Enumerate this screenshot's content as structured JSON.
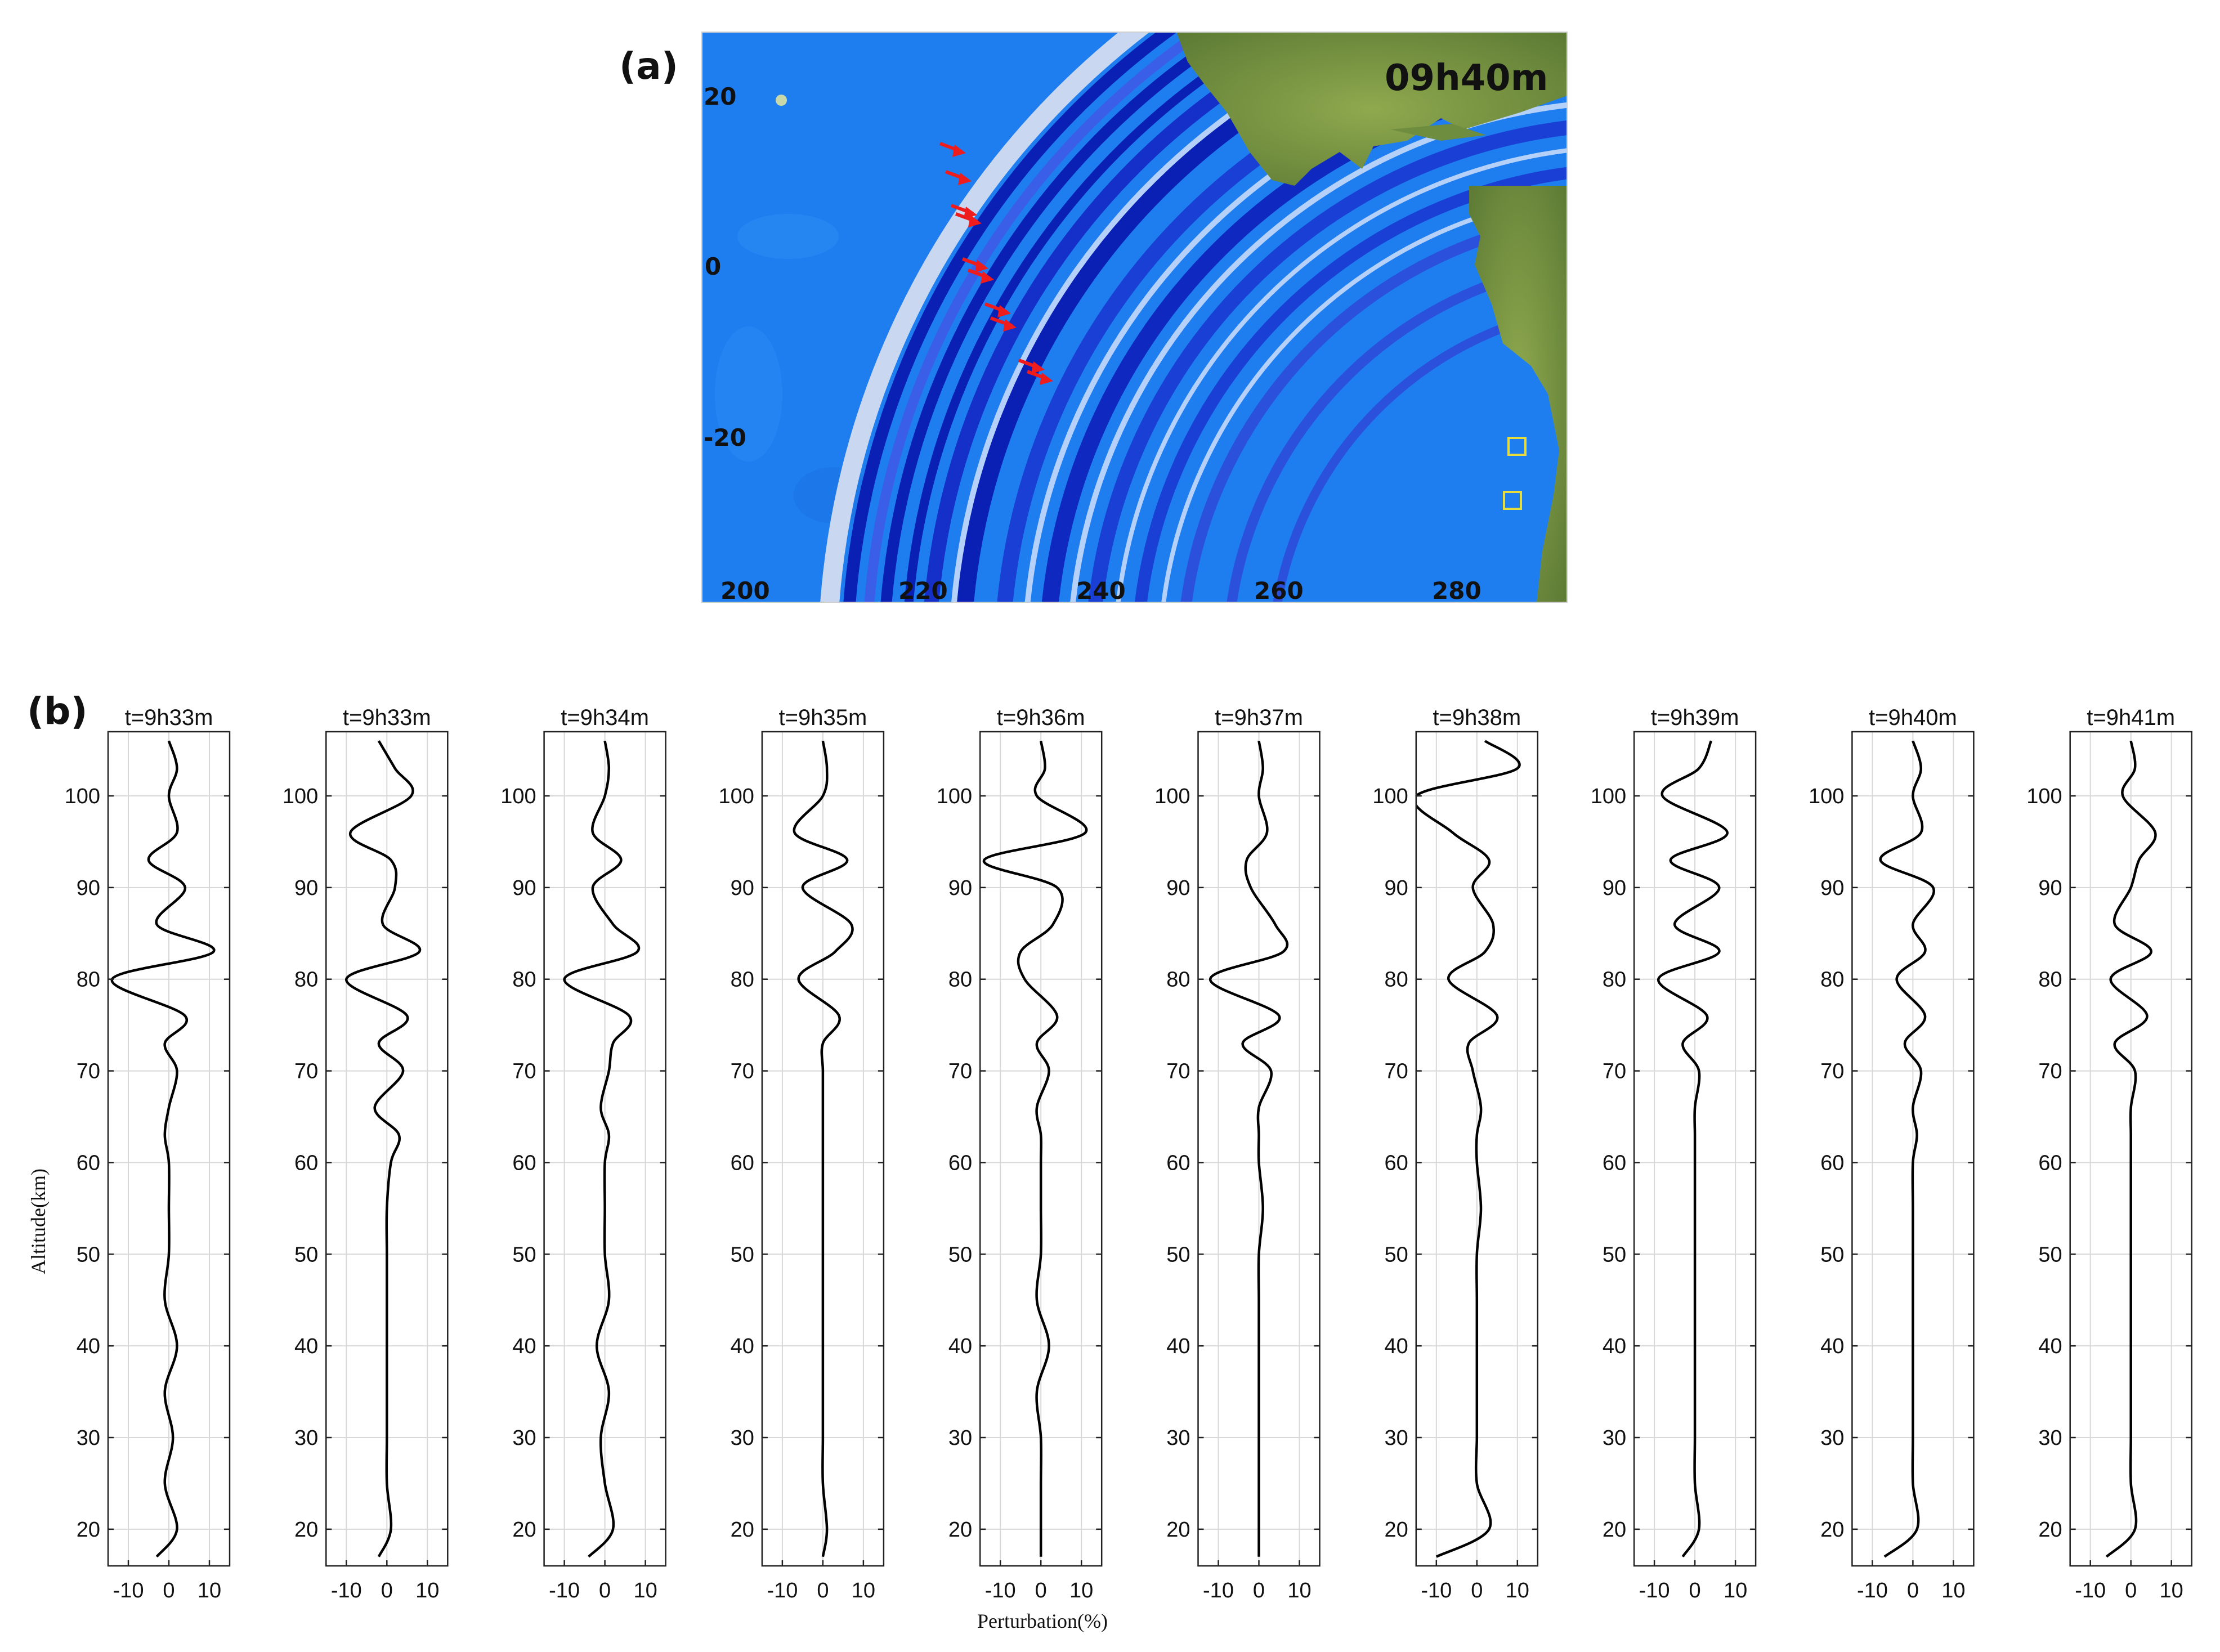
{
  "map_panel": {
    "label": "(a)",
    "time_stamp": "09h40m",
    "lat_ticks": [
      "20",
      "0",
      "-20"
    ],
    "lon_ticks": [
      "200",
      "220",
      "240",
      "260",
      "280"
    ],
    "colors": {
      "ocean": "#1e7ef0",
      "wave_dark": "#0a1fb4",
      "land": "#7e9a46",
      "arrow": "#ee1c1c",
      "station_box": "#e6dc3c"
    }
  },
  "profile_panel": {
    "label": "(b)",
    "xlabel": "Perturbation(%)",
    "ylabel": "Altitude(km)"
  },
  "chart_data": {
    "type": "line",
    "title": "",
    "xlabel": "Perturbation(%)",
    "ylabel": "Altitude(km)",
    "xlim": [
      -15,
      15
    ],
    "ylim": [
      16,
      107
    ],
    "xticks": [
      "-10",
      "0",
      "10"
    ],
    "yticks": [
      "20",
      "30",
      "40",
      "50",
      "60",
      "70",
      "80",
      "90",
      "100"
    ],
    "grid": true,
    "subplots": [
      {
        "title": "t=9h33m",
        "altitude": [
          17,
          20,
          25,
          30,
          35,
          40,
          45,
          50,
          55,
          60,
          63,
          66,
          70,
          73,
          76,
          80,
          83,
          86,
          90,
          93,
          96,
          100,
          103,
          106
        ],
        "perturbation": [
          -3,
          2,
          -1,
          1,
          -1,
          2,
          -1,
          0,
          0,
          0,
          -1,
          0,
          2,
          -1,
          4,
          -14,
          11,
          -3,
          4,
          -5,
          2,
          0,
          2,
          0
        ]
      },
      {
        "title": "t=9h33m",
        "altitude": [
          17,
          20,
          25,
          30,
          35,
          40,
          45,
          50,
          55,
          60,
          63,
          66,
          70,
          73,
          76,
          80,
          83,
          86,
          90,
          93,
          96,
          100,
          103,
          106
        ],
        "perturbation": [
          -2,
          1,
          0,
          0,
          0,
          0,
          0,
          0,
          0,
          1,
          3,
          -3,
          4,
          -2,
          5,
          -10,
          8,
          -1,
          2,
          1,
          -9,
          6,
          2,
          -2
        ]
      },
      {
        "title": "t=9h34m",
        "altitude": [
          17,
          20,
          25,
          30,
          35,
          40,
          45,
          50,
          55,
          60,
          63,
          66,
          70,
          73,
          76,
          80,
          83,
          86,
          90,
          93,
          96,
          100,
          103,
          106
        ],
        "perturbation": [
          -4,
          2,
          0,
          -1,
          1,
          -2,
          1,
          0,
          0,
          0,
          1,
          -1,
          1,
          2,
          6,
          -10,
          8,
          2,
          -3,
          4,
          -3,
          0,
          1,
          0
        ]
      },
      {
        "title": "t=9h35m",
        "altitude": [
          17,
          20,
          25,
          30,
          35,
          40,
          45,
          50,
          55,
          60,
          63,
          66,
          70,
          73,
          76,
          80,
          83,
          86,
          90,
          93,
          96,
          100,
          103,
          106
        ],
        "perturbation": [
          0,
          1,
          0,
          0,
          0,
          0,
          0,
          0,
          0,
          0,
          0,
          0,
          0,
          0,
          4,
          -6,
          3,
          7,
          -5,
          6,
          -7,
          0,
          1,
          0
        ]
      },
      {
        "title": "t=9h36m",
        "altitude": [
          17,
          20,
          25,
          30,
          35,
          40,
          45,
          50,
          55,
          60,
          63,
          66,
          70,
          73,
          76,
          80,
          83,
          86,
          90,
          93,
          96,
          100,
          103,
          106
        ],
        "perturbation": [
          0,
          0,
          0,
          0,
          -1,
          2,
          -1,
          0,
          0,
          0,
          0,
          -1,
          2,
          -1,
          4,
          -4,
          -5,
          3,
          4,
          -14,
          11,
          -1,
          1,
          0
        ]
      },
      {
        "title": "t=9h37m",
        "altitude": [
          17,
          20,
          25,
          30,
          35,
          40,
          45,
          50,
          55,
          60,
          63,
          66,
          70,
          73,
          76,
          80,
          83,
          86,
          90,
          93,
          96,
          100,
          103,
          106
        ],
        "perturbation": [
          0,
          0,
          0,
          0,
          0,
          0,
          0,
          0,
          1,
          0,
          0,
          0,
          3,
          -4,
          5,
          -12,
          6,
          4,
          -2,
          -3,
          2,
          0,
          1,
          0
        ]
      },
      {
        "title": "t=9h38m",
        "altitude": [
          17,
          20,
          25,
          30,
          35,
          40,
          45,
          50,
          55,
          60,
          63,
          66,
          70,
          73,
          76,
          80,
          83,
          86,
          90,
          93,
          96,
          100,
          103,
          106
        ],
        "perturbation": [
          -10,
          3,
          0,
          0,
          0,
          0,
          0,
          0,
          1,
          0,
          0,
          1,
          -1,
          -2,
          5,
          -7,
          2,
          4,
          -1,
          3,
          -6,
          -15,
          10,
          2
        ]
      },
      {
        "title": "t=9h39m",
        "altitude": [
          17,
          20,
          25,
          30,
          35,
          40,
          45,
          50,
          55,
          60,
          63,
          66,
          70,
          73,
          76,
          80,
          83,
          86,
          90,
          93,
          96,
          100,
          103,
          106
        ],
        "perturbation": [
          -3,
          1,
          0,
          0,
          0,
          0,
          0,
          0,
          0,
          0,
          0,
          0,
          1,
          -3,
          3,
          -9,
          6,
          -5,
          6,
          -6,
          8,
          -8,
          1,
          4
        ]
      },
      {
        "title": "t=9h40m",
        "altitude": [
          17,
          20,
          25,
          30,
          35,
          40,
          45,
          50,
          55,
          60,
          63,
          66,
          70,
          73,
          76,
          80,
          83,
          86,
          90,
          93,
          96,
          100,
          103,
          106
        ],
        "perturbation": [
          -7,
          1,
          0,
          0,
          0,
          0,
          0,
          0,
          0,
          0,
          1,
          0,
          2,
          -2,
          3,
          -4,
          3,
          0,
          5,
          -8,
          2,
          0,
          2,
          0
        ]
      },
      {
        "title": "t=9h41m",
        "altitude": [
          17,
          20,
          25,
          30,
          35,
          40,
          45,
          50,
          55,
          60,
          63,
          66,
          70,
          73,
          76,
          80,
          83,
          86,
          90,
          93,
          96,
          100,
          103,
          106
        ],
        "perturbation": [
          -6,
          1,
          0,
          0,
          0,
          0,
          0,
          0,
          0,
          0,
          0,
          0,
          1,
          -4,
          4,
          -5,
          5,
          -4,
          0,
          2,
          6,
          -2,
          1,
          0
        ]
      }
    ]
  }
}
